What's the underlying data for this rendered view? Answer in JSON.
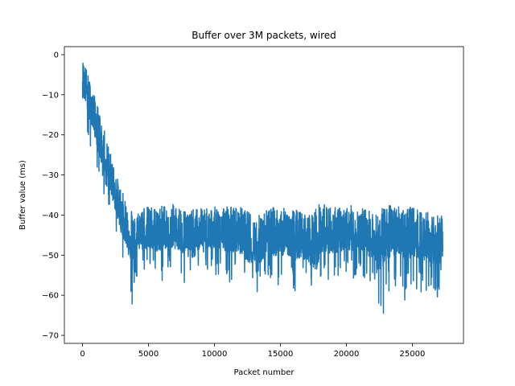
{
  "chart_data": {
    "type": "line",
    "title": "Buffer over 3M packets, wired",
    "xlabel": "Packet number",
    "ylabel": "Buffer value (ms)",
    "xlim": [
      -1375,
      28875
    ],
    "ylim": [
      -72,
      2
    ],
    "xticks": [
      0,
      5000,
      10000,
      15000,
      20000,
      25000
    ],
    "xtick_labels": [
      "0",
      "5000",
      "10000",
      "15000",
      "20000",
      "25000"
    ],
    "yticks": [
      0,
      -10,
      -20,
      -30,
      -40,
      -50,
      -60,
      -70
    ],
    "ytick_labels": [
      "0",
      "−10",
      "−20",
      "−30",
      "−40",
      "−50",
      "−60",
      "−70"
    ],
    "grid": false,
    "legend": "none",
    "series": [
      {
        "color": "#1f77b4",
        "x": [
          0,
          250,
          500,
          750,
          1000,
          1250,
          1500,
          1750,
          2000,
          2250,
          2500,
          2750,
          3000,
          3250,
          3500,
          3750,
          4000,
          4250,
          4500,
          4750,
          5000,
          5500,
          6000,
          6500,
          7000,
          7500,
          8000,
          8500,
          9000,
          9500,
          10000,
          10500,
          11000,
          11500,
          12000,
          12500,
          13000,
          13250,
          13500,
          14000,
          14500,
          15000,
          15500,
          16000,
          16500,
          17000,
          17500,
          17800,
          18000,
          18500,
          19000,
          19500,
          20000,
          20500,
          21000,
          21500,
          22000,
          22300,
          22500,
          23000,
          23500,
          24000,
          24500,
          25000,
          25500,
          26000,
          26500,
          27000,
          27300
        ],
        "y_max": [
          -1.5,
          -3,
          -6,
          -9,
          -11,
          -14,
          -17,
          -20,
          -23,
          -26,
          -29,
          -32,
          -34,
          -36,
          -37,
          -38,
          -39,
          -39,
          -37.5,
          -37.5,
          -38,
          -37.5,
          -37.5,
          -37,
          -37.5,
          -38,
          -39,
          -38.5,
          -38,
          -38,
          -38,
          -37.5,
          -37.5,
          -38,
          -38,
          -39,
          -40,
          -41,
          -39,
          -38.5,
          -38,
          -38,
          -38.5,
          -38.5,
          -39,
          -40,
          -39,
          -37.5,
          -37,
          -37.5,
          -38,
          -38,
          -38,
          -37.5,
          -38,
          -38.5,
          -39,
          -40,
          -38,
          -37.5,
          -37.5,
          -37.5,
          -38,
          -38,
          -38.5,
          -39,
          -40,
          -40,
          -38.5
        ],
        "y_min": [
          -21.5,
          -20,
          -25,
          -24,
          -28,
          -33,
          -36,
          -35,
          -38,
          -41,
          -45,
          -48,
          -52,
          -52,
          -60,
          -64.5,
          -56,
          -55,
          -50,
          -55,
          -54,
          -56,
          -57,
          -53,
          -55,
          -56,
          -58,
          -57,
          -53,
          -54,
          -56,
          -55,
          -57,
          -56,
          -57,
          -60,
          -62,
          -65.5,
          -61,
          -56,
          -58,
          -58,
          -57,
          -59,
          -59,
          -57,
          -60,
          -64,
          -57,
          -56,
          -57,
          -55,
          -56,
          -56,
          -55,
          -57,
          -58,
          -59,
          -68.5,
          -62,
          -59,
          -57,
          -62,
          -58,
          -59,
          -60,
          -63,
          -61,
          -58.5
        ],
        "y_mid": [
          -5,
          -8,
          -12,
          -15,
          -18,
          -21,
          -24,
          -27,
          -30,
          -33,
          -36,
          -39,
          -42,
          -44,
          -45,
          -46,
          -46,
          -46,
          -45,
          -45,
          -46,
          -45.5,
          -45,
          -45,
          -45,
          -46,
          -47,
          -47,
          -45,
          -45,
          -45.5,
          -45,
          -45,
          -45.5,
          -46,
          -47,
          -48,
          -50,
          -47,
          -46,
          -46,
          -46,
          -46,
          -47,
          -47,
          -48,
          -50,
          -48,
          -45,
          -45.5,
          -46,
          -46,
          -45.5,
          -45,
          -45.5,
          -46,
          -47,
          -49,
          -50,
          -46,
          -45.5,
          -45.5,
          -46,
          -46,
          -46.5,
          -47,
          -48,
          -48,
          -46
        ]
      }
    ]
  }
}
